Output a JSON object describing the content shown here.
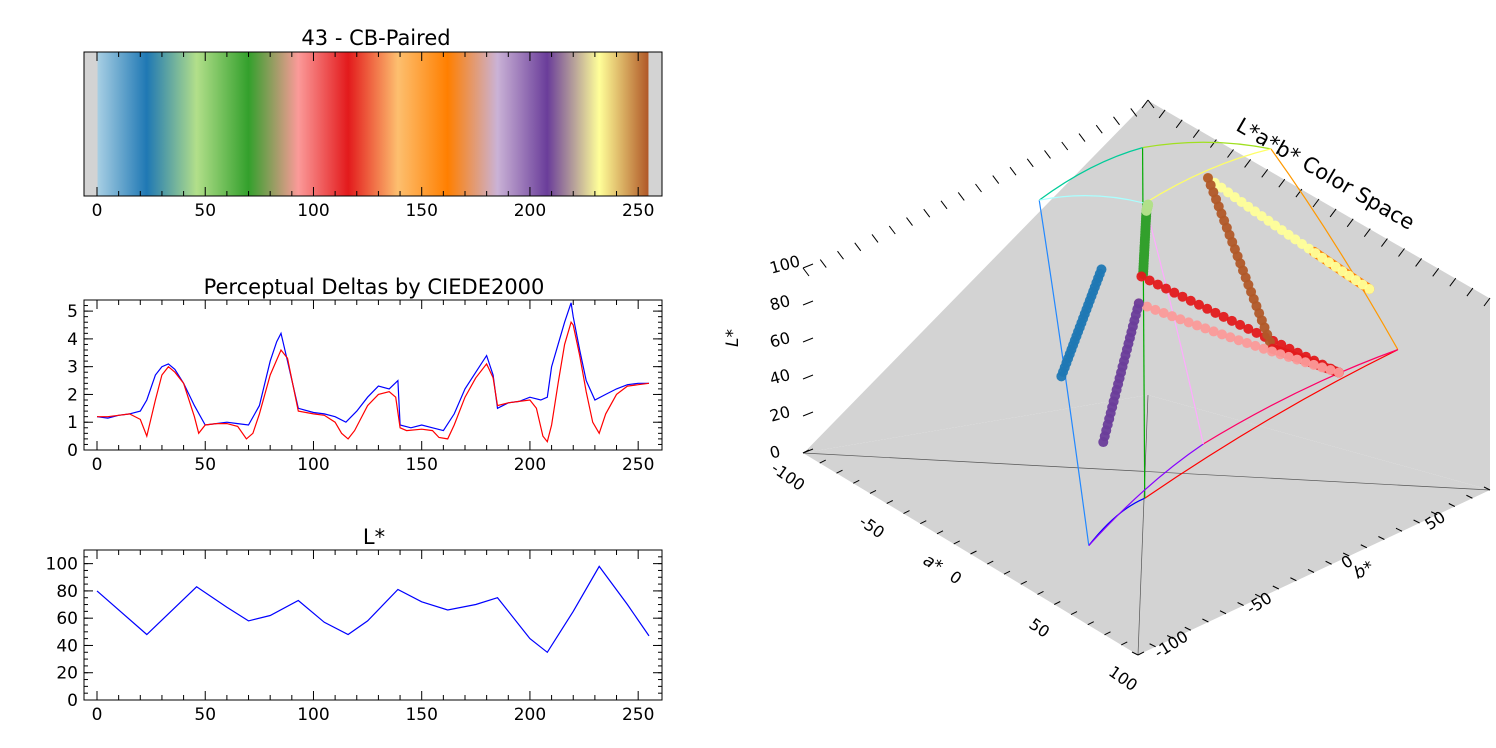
{
  "chart_data": [
    {
      "type": "colorbar",
      "title": "43 - CB-Paired",
      "xlim": [
        0,
        255
      ],
      "xticks": [
        "0",
        "50",
        "100",
        "150",
        "200",
        "250"
      ],
      "stops": [
        {
          "x": 0,
          "color": "#d3d3d3"
        },
        {
          "x": 0.5,
          "color": "#a6cee3"
        },
        {
          "x": 23,
          "color": "#1f78b4"
        },
        {
          "x": 46,
          "color": "#b2df8a"
        },
        {
          "x": 70,
          "color": "#33a02c"
        },
        {
          "x": 93,
          "color": "#fb9a99"
        },
        {
          "x": 116,
          "color": "#e31a1c"
        },
        {
          "x": 139,
          "color": "#fdbf6f"
        },
        {
          "x": 162,
          "color": "#ff7f00"
        },
        {
          "x": 185,
          "color": "#cab2d6"
        },
        {
          "x": 208,
          "color": "#6a3d9a"
        },
        {
          "x": 232,
          "color": "#ffff99"
        },
        {
          "x": 254.5,
          "color": "#b15928"
        },
        {
          "x": 255,
          "color": "#d3d3d3"
        }
      ]
    },
    {
      "type": "line",
      "title": "Perceptual Deltas by CIEDE2000",
      "xlim": [
        0,
        255
      ],
      "ylim": [
        0,
        5.4
      ],
      "xticks": [
        "0",
        "50",
        "100",
        "150",
        "200",
        "250"
      ],
      "yticks": [
        "0",
        "1",
        "2",
        "3",
        "4",
        "5"
      ],
      "series": [
        {
          "color": "#0000ff",
          "x": [
            0,
            5,
            10,
            15,
            20,
            23,
            27,
            30,
            33,
            36,
            40,
            45,
            50,
            55,
            60,
            65,
            70,
            75,
            80,
            83,
            85,
            88,
            93,
            100,
            105,
            110,
            115,
            120,
            125,
            130,
            135,
            139,
            140,
            145,
            150,
            155,
            160,
            165,
            170,
            175,
            180,
            183,
            185,
            190,
            195,
            200,
            205,
            208,
            210,
            213,
            216,
            219,
            220,
            223,
            226,
            230,
            235,
            240,
            245,
            250,
            255
          ],
          "y": [
            1.2,
            1.15,
            1.25,
            1.3,
            1.4,
            1.8,
            2.7,
            3.0,
            3.1,
            2.9,
            2.4,
            1.6,
            0.9,
            0.95,
            1.0,
            0.95,
            0.9,
            1.6,
            3.2,
            3.9,
            4.2,
            3.2,
            1.5,
            1.35,
            1.3,
            1.2,
            1.0,
            1.4,
            1.9,
            2.3,
            2.2,
            2.5,
            0.9,
            0.8,
            0.9,
            0.8,
            0.7,
            1.3,
            2.2,
            2.8,
            3.4,
            2.7,
            1.5,
            1.7,
            1.75,
            1.9,
            1.8,
            1.9,
            3.0,
            3.8,
            4.6,
            5.3,
            4.8,
            3.6,
            2.5,
            1.8,
            2.0,
            2.2,
            2.35,
            2.4,
            2.4
          ]
        },
        {
          "color": "#ff0000",
          "x": [
            0,
            5,
            10,
            15,
            20,
            23,
            27,
            30,
            33,
            36,
            40,
            45,
            47,
            50,
            55,
            60,
            65,
            69,
            72,
            75,
            80,
            85,
            88,
            93,
            100,
            105,
            110,
            113,
            116,
            119,
            125,
            130,
            135,
            138,
            140,
            143,
            150,
            155,
            158,
            162,
            165,
            170,
            175,
            180,
            183,
            185,
            190,
            195,
            200,
            203,
            206,
            208,
            210,
            213,
            216,
            219,
            220,
            223,
            226,
            229,
            232,
            235,
            240,
            245,
            250,
            255
          ],
          "y": [
            1.2,
            1.2,
            1.25,
            1.3,
            1.1,
            0.5,
            1.8,
            2.7,
            3.0,
            2.8,
            2.4,
            1.2,
            0.6,
            0.9,
            0.95,
            0.95,
            0.85,
            0.4,
            0.6,
            1.3,
            2.7,
            3.6,
            3.3,
            1.4,
            1.3,
            1.25,
            1.0,
            0.6,
            0.4,
            0.7,
            1.6,
            2.0,
            2.1,
            1.9,
            0.8,
            0.7,
            0.75,
            0.7,
            0.45,
            0.4,
            0.9,
            1.9,
            2.6,
            3.1,
            2.6,
            1.6,
            1.7,
            1.75,
            1.8,
            1.5,
            0.5,
            0.3,
            0.9,
            2.4,
            3.8,
            4.6,
            4.5,
            3.4,
            2.1,
            1.0,
            0.6,
            1.3,
            2.0,
            2.3,
            2.35,
            2.4
          ]
        }
      ]
    },
    {
      "type": "line",
      "title": "L*",
      "xlim": [
        0,
        255
      ],
      "ylim": [
        0,
        110
      ],
      "xticks": [
        "0",
        "50",
        "100",
        "150",
        "200",
        "250"
      ],
      "yticks": [
        "0",
        "20",
        "40",
        "60",
        "80",
        "100"
      ],
      "series": [
        {
          "color": "#0000ff",
          "x": [
            0,
            23,
            46,
            60,
            70,
            80,
            93,
            105,
            116,
            125,
            139,
            150,
            162,
            175,
            185,
            200,
            208,
            220,
            232,
            245,
            255
          ],
          "y": [
            80,
            48,
            83,
            68,
            58,
            62,
            73,
            57,
            48,
            58,
            81,
            72,
            66,
            70,
            75,
            45,
            35,
            65,
            98,
            70,
            47
          ]
        }
      ]
    },
    {
      "type": "scatter3d",
      "title": "L*a*b* Color Space",
      "xlabel": "a*",
      "ylabel": "b*",
      "zlabel": "L*",
      "xlim": [
        -100,
        100
      ],
      "ylim": [
        -100,
        100
      ],
      "zlim": [
        0,
        100
      ],
      "xticks": [
        "-100",
        "-50",
        "0",
        "50",
        "100"
      ],
      "yticks": [
        "-100",
        "-50",
        "0",
        "50"
      ],
      "zticks": [
        "0",
        "20",
        "40",
        "60",
        "80",
        "100"
      ],
      "gamut": {
        "black": [
          0,
          0,
          0
        ],
        "white": [
          0,
          0,
          100
        ],
        "red": [
          80,
          67,
          53
        ],
        "green": [
          -86,
          83,
          88
        ],
        "blue": [
          79,
          -108,
          32
        ],
        "cyan": [
          -48,
          -14,
          91
        ],
        "magenta": [
          98,
          -61,
          60
        ],
        "yellow": [
          -22,
          94,
          97
        ]
      },
      "segments": [
        {
          "color": "#1f78b4",
          "from": [
            -5,
            -20,
            80
          ],
          "to": [
            -5,
            -43,
            48
          ]
        },
        {
          "color": "#33a02c",
          "from": [
            -38,
            38,
            82
          ],
          "to": [
            -43,
            41,
            59
          ]
        },
        {
          "color": "#b2df8a",
          "from": [
            -38,
            38,
            82
          ],
          "to": [
            -38,
            39,
            84
          ]
        },
        {
          "color": "#e31a1c",
          "from": [
            -44,
            41,
            58
          ],
          "to": [
            67,
            46,
            48
          ]
        },
        {
          "color": "#ff7f00",
          "from": [
            41,
            57,
            81
          ],
          "to": [
            53,
            77,
            66
          ]
        },
        {
          "color": "#ffff99",
          "from": [
            53,
            77,
            66
          ],
          "to": [
            -12,
            48,
            97
          ]
        },
        {
          "color": "#b15928",
          "from": [
            -12,
            48,
            97
          ],
          "to": [
            26,
            48,
            47
          ]
        },
        {
          "color": "#e31a1c",
          "from": [
            26,
            48,
            47
          ],
          "to": [
            67,
            46,
            48
          ]
        },
        {
          "color": "#fb9a99",
          "from": [
            67,
            46,
            48
          ],
          "to": [
            14,
            -17,
            73
          ]
        },
        {
          "color": "#6a3d9a",
          "from": [
            14,
            -17,
            73
          ],
          "to": [
            24,
            -47,
            35
          ]
        }
      ]
    }
  ]
}
